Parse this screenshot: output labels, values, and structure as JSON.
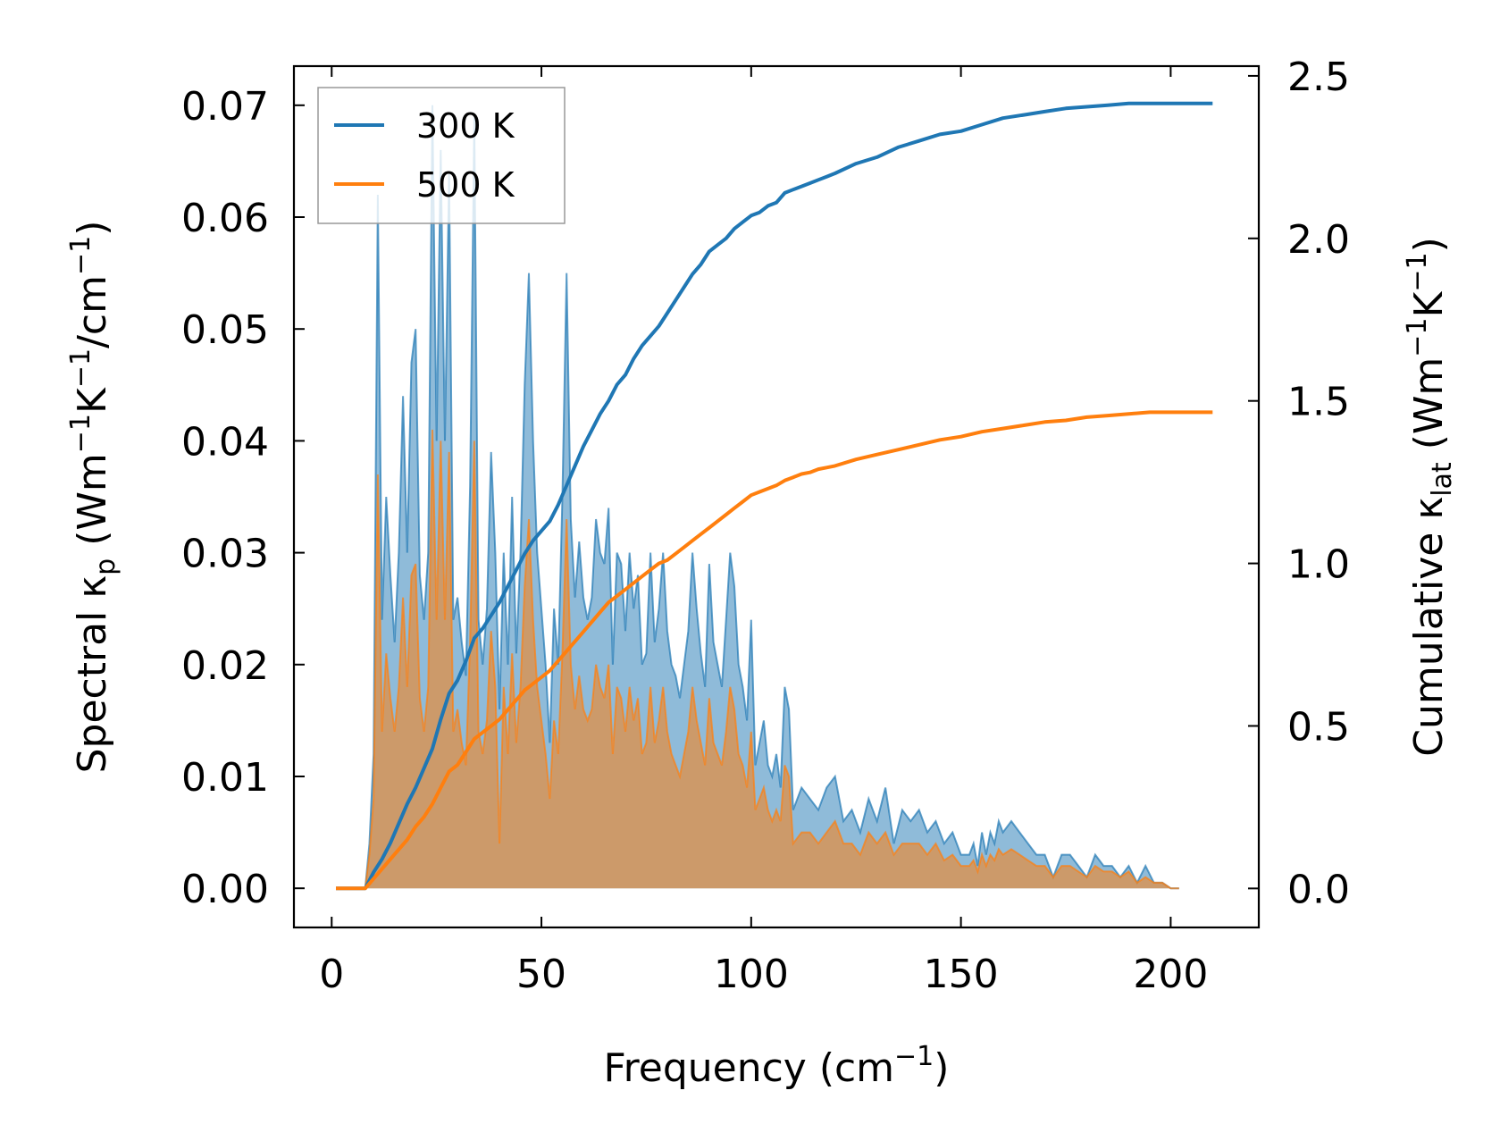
{
  "chart_data": {
    "type": "line",
    "xlabel": "Frequency (cm",
    "xlabel_sup": "−1",
    "xlabel_end": ")",
    "ylabel_left": {
      "a": "Spectral κ",
      "sub": "p",
      "b": " (Wm",
      "sup1": "−1",
      "c": "K",
      "sup2": "−1",
      "d": "/cm",
      "sup3": "−1",
      "e": ")"
    },
    "ylabel_right": {
      "a": "Cumulative κ",
      "sub": "lat",
      "b": " (Wm",
      "sup1": "−1",
      "c": "K",
      "sup2": "−1",
      "d": ")"
    },
    "xlim": [
      -9,
      221
    ],
    "ylim_left": [
      -0.0035,
      0.0735
    ],
    "ylim_right": [
      -0.12,
      2.53
    ],
    "xticks": [
      0,
      50,
      100,
      150,
      200
    ],
    "xtick_labels": [
      "0",
      "50",
      "100",
      "150",
      "200"
    ],
    "yticks_left": [
      0.0,
      0.01,
      0.02,
      0.03,
      0.04,
      0.05,
      0.06,
      0.07
    ],
    "ytick_labels_left": [
      "0.00",
      "0.01",
      "0.02",
      "0.03",
      "0.04",
      "0.05",
      "0.06",
      "0.07"
    ],
    "yticks_right": [
      0.0,
      0.5,
      1.0,
      1.5,
      2.0,
      2.5
    ],
    "ytick_labels_right": [
      "0.0",
      "0.5",
      "1.0",
      "1.5",
      "2.0",
      "2.5"
    ],
    "legend_position": "upper-left",
    "series": [
      {
        "name": "300 K",
        "color": "#1f77b4",
        "spectral_x": [
          1,
          8,
          9,
          10,
          11,
          12,
          13,
          14,
          15,
          16,
          17,
          18,
          19,
          20,
          21,
          22,
          23,
          24,
          25,
          26,
          27,
          28,
          29,
          30,
          31,
          32,
          33,
          34,
          35,
          36,
          37,
          38,
          39,
          40,
          41,
          42,
          43,
          44,
          45,
          46,
          47,
          48,
          49,
          50,
          51,
          52,
          53,
          54,
          55,
          56,
          57,
          58,
          59,
          60,
          61,
          62,
          63,
          64,
          65,
          66,
          67,
          68,
          69,
          70,
          71,
          72,
          73,
          74,
          75,
          76,
          77,
          78,
          79,
          80,
          81,
          82,
          83,
          84,
          85,
          86,
          87,
          88,
          89,
          90,
          91,
          92,
          93,
          94,
          95,
          96,
          97,
          98,
          99,
          100,
          101,
          102,
          103,
          104,
          105,
          106,
          107,
          108,
          109,
          110,
          112,
          114,
          116,
          118,
          120,
          122,
          124,
          126,
          128,
          130,
          132,
          134,
          136,
          138,
          140,
          142,
          144,
          146,
          148,
          150,
          152,
          153,
          154,
          155,
          156,
          157,
          158,
          159,
          160,
          162,
          164,
          166,
          168,
          170,
          172,
          174,
          176,
          178,
          180,
          182,
          184,
          186,
          188,
          190,
          192,
          194,
          196,
          198,
          200,
          202,
          205,
          210
        ],
        "spectral_y": [
          0,
          0,
          0.004,
          0.012,
          0.062,
          0.024,
          0.035,
          0.028,
          0.022,
          0.03,
          0.044,
          0.03,
          0.047,
          0.05,
          0.028,
          0.024,
          0.03,
          0.07,
          0.04,
          0.066,
          0.04,
          0.064,
          0.024,
          0.026,
          0.022,
          0.019,
          0.036,
          0.069,
          0.024,
          0.02,
          0.025,
          0.039,
          0.03,
          0.016,
          0.03,
          0.02,
          0.035,
          0.021,
          0.03,
          0.045,
          0.055,
          0.04,
          0.03,
          0.025,
          0.02,
          0.013,
          0.025,
          0.02,
          0.035,
          0.055,
          0.033,
          0.026,
          0.031,
          0.026,
          0.024,
          0.026,
          0.033,
          0.03,
          0.029,
          0.034,
          0.02,
          0.03,
          0.029,
          0.023,
          0.03,
          0.025,
          0.028,
          0.02,
          0.021,
          0.03,
          0.022,
          0.025,
          0.03,
          0.023,
          0.02,
          0.019,
          0.017,
          0.02,
          0.023,
          0.03,
          0.025,
          0.021,
          0.018,
          0.029,
          0.022,
          0.02,
          0.018,
          0.024,
          0.03,
          0.027,
          0.02,
          0.018,
          0.015,
          0.024,
          0.011,
          0.013,
          0.015,
          0.011,
          0.01,
          0.012,
          0.009,
          0.018,
          0.016,
          0.007,
          0.009,
          0.008,
          0.007,
          0.009,
          0.01,
          0.006,
          0.007,
          0.005,
          0.008,
          0.006,
          0.009,
          0.004,
          0.007,
          0.006,
          0.007,
          0.005,
          0.006,
          0.004,
          0.005,
          0.003,
          0.003,
          0.004,
          0.002,
          0.005,
          0.003,
          0.005,
          0.004,
          0.006,
          0.005,
          0.006,
          0.005,
          0.004,
          0.003,
          0.003,
          0.001,
          0.003,
          0.003,
          0.002,
          0.001,
          0.003,
          0.002,
          0.002,
          0.001,
          0.002,
          0.0005,
          0.002,
          0.0005,
          0.0005,
          0,
          0
        ],
        "cumulative_x": [
          1,
          8,
          10,
          12,
          14,
          16,
          18,
          20,
          22,
          24,
          26,
          28,
          30,
          32,
          34,
          36,
          38,
          40,
          42,
          44,
          46,
          48,
          50,
          52,
          54,
          56,
          58,
          60,
          62,
          64,
          66,
          68,
          70,
          72,
          74,
          76,
          78,
          80,
          82,
          84,
          86,
          88,
          90,
          92,
          94,
          96,
          98,
          100,
          102,
          104,
          106,
          108,
          110,
          112,
          114,
          116,
          118,
          120,
          125,
          130,
          135,
          140,
          145,
          150,
          155,
          160,
          165,
          170,
          175,
          180,
          185,
          190,
          195,
          200,
          205,
          210
        ],
        "cumulative_y": [
          0,
          0,
          0.05,
          0.09,
          0.14,
          0.2,
          0.26,
          0.31,
          0.37,
          0.43,
          0.52,
          0.6,
          0.64,
          0.7,
          0.77,
          0.8,
          0.84,
          0.88,
          0.93,
          0.98,
          1.03,
          1.07,
          1.1,
          1.13,
          1.18,
          1.24,
          1.3,
          1.36,
          1.41,
          1.46,
          1.5,
          1.55,
          1.58,
          1.63,
          1.67,
          1.7,
          1.73,
          1.77,
          1.81,
          1.85,
          1.89,
          1.92,
          1.96,
          1.98,
          2.0,
          2.03,
          2.05,
          2.07,
          2.08,
          2.1,
          2.11,
          2.14,
          2.15,
          2.16,
          2.17,
          2.18,
          2.19,
          2.2,
          2.23,
          2.25,
          2.28,
          2.3,
          2.32,
          2.33,
          2.35,
          2.37,
          2.38,
          2.39,
          2.4,
          2.405,
          2.41,
          2.415,
          2.415,
          2.415,
          2.415,
          2.415
        ]
      },
      {
        "name": "500 K",
        "color": "#ff7f0e",
        "spectral_x": [
          1,
          8,
          9,
          10,
          11,
          12,
          13,
          14,
          15,
          16,
          17,
          18,
          19,
          20,
          21,
          22,
          23,
          24,
          25,
          26,
          27,
          28,
          29,
          30,
          31,
          32,
          33,
          34,
          35,
          36,
          37,
          38,
          39,
          40,
          41,
          42,
          43,
          44,
          45,
          46,
          47,
          48,
          49,
          50,
          51,
          52,
          53,
          54,
          55,
          56,
          57,
          58,
          59,
          60,
          61,
          62,
          63,
          64,
          65,
          66,
          67,
          68,
          69,
          70,
          71,
          72,
          73,
          74,
          75,
          76,
          77,
          78,
          79,
          80,
          81,
          82,
          83,
          84,
          85,
          86,
          87,
          88,
          89,
          90,
          91,
          92,
          93,
          94,
          95,
          96,
          97,
          98,
          99,
          100,
          101,
          102,
          103,
          104,
          105,
          106,
          107,
          108,
          109,
          110,
          112,
          114,
          116,
          118,
          120,
          122,
          124,
          126,
          128,
          130,
          132,
          134,
          136,
          138,
          140,
          142,
          144,
          146,
          148,
          150,
          152,
          153,
          154,
          155,
          156,
          157,
          158,
          159,
          160,
          162,
          164,
          166,
          168,
          170,
          172,
          174,
          176,
          178,
          180,
          182,
          184,
          186,
          188,
          190,
          192,
          194,
          196,
          198,
          200,
          202,
          205,
          210
        ],
        "spectral_y": [
          0,
          0,
          0.003,
          0.008,
          0.037,
          0.014,
          0.021,
          0.017,
          0.014,
          0.018,
          0.026,
          0.018,
          0.028,
          0.029,
          0.017,
          0.014,
          0.018,
          0.041,
          0.024,
          0.04,
          0.024,
          0.039,
          0.014,
          0.016,
          0.013,
          0.011,
          0.022,
          0.04,
          0.014,
          0.012,
          0.015,
          0.023,
          0.018,
          0.004,
          0.018,
          0.012,
          0.021,
          0.013,
          0.018,
          0.027,
          0.033,
          0.024,
          0.018,
          0.015,
          0.012,
          0.008,
          0.015,
          0.012,
          0.021,
          0.033,
          0.02,
          0.016,
          0.019,
          0.016,
          0.015,
          0.016,
          0.02,
          0.018,
          0.017,
          0.02,
          0.012,
          0.018,
          0.017,
          0.014,
          0.018,
          0.015,
          0.017,
          0.012,
          0.013,
          0.018,
          0.013,
          0.015,
          0.018,
          0.014,
          0.012,
          0.011,
          0.01,
          0.012,
          0.014,
          0.018,
          0.015,
          0.013,
          0.011,
          0.017,
          0.013,
          0.012,
          0.011,
          0.014,
          0.018,
          0.016,
          0.012,
          0.011,
          0.009,
          0.014,
          0.007,
          0.008,
          0.009,
          0.007,
          0.006,
          0.007,
          0.006,
          0.011,
          0.01,
          0.004,
          0.005,
          0.005,
          0.004,
          0.005,
          0.006,
          0.004,
          0.004,
          0.003,
          0.005,
          0.004,
          0.005,
          0.003,
          0.004,
          0.004,
          0.004,
          0.003,
          0.004,
          0.0025,
          0.003,
          0.002,
          0.002,
          0.0025,
          0.0015,
          0.003,
          0.002,
          0.003,
          0.0025,
          0.0035,
          0.003,
          0.0035,
          0.003,
          0.0025,
          0.002,
          0.002,
          0.001,
          0.002,
          0.002,
          0.0015,
          0.001,
          0.002,
          0.0015,
          0.0015,
          0.001,
          0.0015,
          0.0005,
          0.001,
          0.0005,
          0.0005,
          0,
          0
        ],
        "cumulative_x": [
          1,
          8,
          10,
          12,
          14,
          16,
          18,
          20,
          22,
          24,
          26,
          28,
          30,
          32,
          34,
          36,
          38,
          40,
          42,
          44,
          46,
          48,
          50,
          52,
          54,
          56,
          58,
          60,
          62,
          64,
          66,
          68,
          70,
          72,
          74,
          76,
          78,
          80,
          82,
          84,
          86,
          88,
          90,
          92,
          94,
          96,
          98,
          100,
          102,
          104,
          106,
          108,
          110,
          112,
          114,
          116,
          118,
          120,
          125,
          130,
          135,
          140,
          145,
          150,
          155,
          160,
          165,
          170,
          175,
          180,
          185,
          190,
          195,
          200,
          205,
          210
        ],
        "cumulative_y": [
          0,
          0,
          0.03,
          0.06,
          0.09,
          0.12,
          0.15,
          0.19,
          0.22,
          0.26,
          0.31,
          0.36,
          0.38,
          0.42,
          0.46,
          0.48,
          0.5,
          0.52,
          0.55,
          0.58,
          0.61,
          0.63,
          0.65,
          0.67,
          0.7,
          0.73,
          0.76,
          0.79,
          0.82,
          0.85,
          0.88,
          0.9,
          0.92,
          0.94,
          0.96,
          0.98,
          1.0,
          1.01,
          1.03,
          1.05,
          1.07,
          1.09,
          1.11,
          1.13,
          1.15,
          1.17,
          1.19,
          1.21,
          1.22,
          1.23,
          1.24,
          1.255,
          1.265,
          1.275,
          1.28,
          1.29,
          1.295,
          1.3,
          1.32,
          1.335,
          1.35,
          1.365,
          1.38,
          1.39,
          1.405,
          1.415,
          1.425,
          1.435,
          1.44,
          1.45,
          1.455,
          1.46,
          1.465,
          1.465,
          1.465,
          1.465
        ]
      }
    ]
  }
}
